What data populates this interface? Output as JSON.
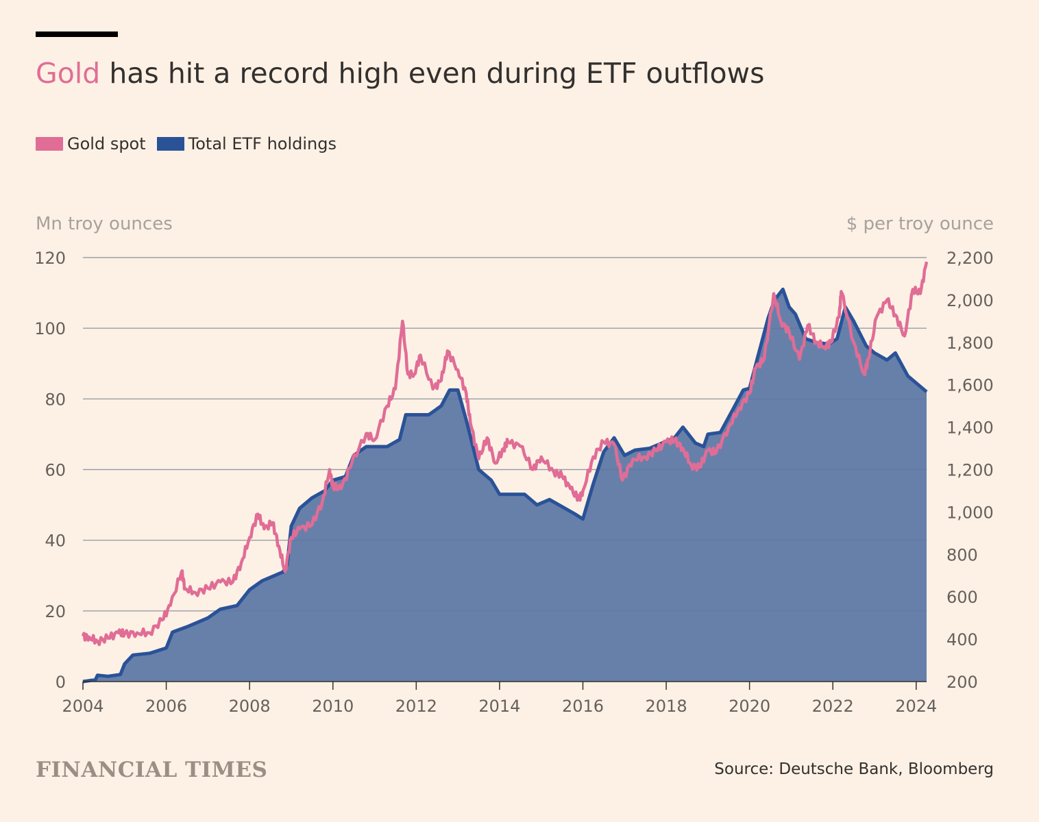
{
  "headline": {
    "highlight": "Gold",
    "rest": " has hit a record high even during ETF outflows"
  },
  "source": "Source: Deutsche Bank, Bloomberg",
  "brand": "FINANCIAL TIMES",
  "colors": {
    "background": "#fdf1e5",
    "gold": "#e06d96",
    "etf_line": "#2a5297",
    "etf_fill": "#6780aa",
    "grid": "#c9c0b6",
    "title_bar": "#000000"
  },
  "chart_data": {
    "type": "area",
    "title": "Gold has hit a record high even during ETF outflows",
    "left_axis": {
      "label": "Mn troy ounces",
      "range": [
        0,
        120
      ],
      "ticks": [
        0,
        20,
        40,
        60,
        80,
        100,
        120
      ],
      "tick_labels": [
        "0",
        "20",
        "40",
        "60",
        "80",
        "100",
        "120"
      ]
    },
    "right_axis": {
      "label": "$ per troy ounce",
      "range": [
        200,
        2200
      ],
      "ticks": [
        200,
        400,
        600,
        800,
        1000,
        1200,
        1400,
        1600,
        1800,
        2000,
        2200
      ],
      "tick_labels": [
        "200",
        "400",
        "600",
        "800",
        "1,000",
        "1,200",
        "1,400",
        "1,600",
        "1,800",
        "2,000",
        "2,200"
      ]
    },
    "x_axis": {
      "range": [
        2004,
        2024.25
      ],
      "ticks": [
        2004,
        2006,
        2008,
        2010,
        2012,
        2014,
        2016,
        2018,
        2020,
        2022,
        2024
      ],
      "tick_labels": [
        "2004",
        "2006",
        "2008",
        "2010",
        "2012",
        "2014",
        "2016",
        "2018",
        "2020",
        "2022",
        "2024"
      ]
    },
    "grid": "horizontal",
    "legend": "top-left",
    "series": [
      {
        "name": "Gold spot",
        "axis": "right",
        "style": "line",
        "points": [
          [
            2004.0,
            415
          ],
          [
            2004.15,
            410
          ],
          [
            2004.35,
            390
          ],
          [
            2004.6,
            405
          ],
          [
            2004.85,
            430
          ],
          [
            2005.0,
            425
          ],
          [
            2005.3,
            430
          ],
          [
            2005.6,
            430
          ],
          [
            2005.9,
            490
          ],
          [
            2006.1,
            560
          ],
          [
            2006.37,
            720
          ],
          [
            2006.45,
            640
          ],
          [
            2006.7,
            620
          ],
          [
            2007.0,
            640
          ],
          [
            2007.3,
            670
          ],
          [
            2007.6,
            670
          ],
          [
            2007.8,
            760
          ],
          [
            2008.0,
            880
          ],
          [
            2008.2,
            990
          ],
          [
            2008.35,
            920
          ],
          [
            2008.55,
            950
          ],
          [
            2008.7,
            840
          ],
          [
            2008.85,
            720
          ],
          [
            2009.0,
            880
          ],
          [
            2009.2,
            920
          ],
          [
            2009.5,
            940
          ],
          [
            2009.75,
            1050
          ],
          [
            2009.92,
            1200
          ],
          [
            2010.0,
            1120
          ],
          [
            2010.2,
            1110
          ],
          [
            2010.45,
            1230
          ],
          [
            2010.8,
            1370
          ],
          [
            2011.0,
            1340
          ],
          [
            2011.3,
            1500
          ],
          [
            2011.5,
            1580
          ],
          [
            2011.67,
            1900
          ],
          [
            2011.8,
            1650
          ],
          [
            2011.95,
            1650
          ],
          [
            2012.1,
            1740
          ],
          [
            2012.4,
            1580
          ],
          [
            2012.6,
            1620
          ],
          [
            2012.75,
            1760
          ],
          [
            2013.0,
            1670
          ],
          [
            2013.2,
            1560
          ],
          [
            2013.3,
            1420
          ],
          [
            2013.5,
            1250
          ],
          [
            2013.7,
            1350
          ],
          [
            2013.9,
            1230
          ],
          [
            2014.1,
            1300
          ],
          [
            2014.2,
            1330
          ],
          [
            2014.5,
            1310
          ],
          [
            2014.8,
            1200
          ],
          [
            2015.0,
            1260
          ],
          [
            2015.3,
            1190
          ],
          [
            2015.5,
            1170
          ],
          [
            2015.7,
            1110
          ],
          [
            2015.9,
            1060
          ],
          [
            2016.0,
            1100
          ],
          [
            2016.25,
            1260
          ],
          [
            2016.5,
            1330
          ],
          [
            2016.75,
            1320
          ],
          [
            2016.95,
            1150
          ],
          [
            2017.2,
            1250
          ],
          [
            2017.5,
            1260
          ],
          [
            2017.75,
            1290
          ],
          [
            2018.0,
            1330
          ],
          [
            2018.2,
            1340
          ],
          [
            2018.4,
            1300
          ],
          [
            2018.6,
            1220
          ],
          [
            2018.8,
            1210
          ],
          [
            2019.0,
            1290
          ],
          [
            2019.2,
            1280
          ],
          [
            2019.5,
            1400
          ],
          [
            2019.75,
            1490
          ],
          [
            2020.0,
            1560
          ],
          [
            2020.15,
            1680
          ],
          [
            2020.35,
            1720
          ],
          [
            2020.58,
            2030
          ],
          [
            2020.75,
            1900
          ],
          [
            2020.95,
            1850
          ],
          [
            2021.2,
            1720
          ],
          [
            2021.4,
            1880
          ],
          [
            2021.6,
            1800
          ],
          [
            2021.8,
            1780
          ],
          [
            2021.95,
            1800
          ],
          [
            2022.15,
            1920
          ],
          [
            2022.2,
            2040
          ],
          [
            2022.5,
            1800
          ],
          [
            2022.75,
            1650
          ],
          [
            2022.85,
            1720
          ],
          [
            2023.05,
            1920
          ],
          [
            2023.3,
            2000
          ],
          [
            2023.5,
            1930
          ],
          [
            2023.72,
            1830
          ],
          [
            2023.92,
            2050
          ],
          [
            2024.1,
            2030
          ],
          [
            2024.25,
            2180
          ]
        ]
      },
      {
        "name": "Total ETF holdings",
        "axis": "left",
        "style": "area",
        "points": [
          [
            2004.0,
            0
          ],
          [
            2004.3,
            0.5
          ],
          [
            2004.35,
            1.8
          ],
          [
            2004.6,
            1.5
          ],
          [
            2004.9,
            2
          ],
          [
            2005.0,
            5
          ],
          [
            2005.2,
            7.5
          ],
          [
            2005.6,
            8
          ],
          [
            2006.0,
            9.5
          ],
          [
            2006.15,
            14
          ],
          [
            2006.5,
            15.5
          ],
          [
            2006.8,
            17
          ],
          [
            2007.0,
            18
          ],
          [
            2007.3,
            20.5
          ],
          [
            2007.7,
            21.5
          ],
          [
            2008.0,
            26
          ],
          [
            2008.3,
            28.5
          ],
          [
            2008.5,
            29.5
          ],
          [
            2008.8,
            31
          ],
          [
            2008.9,
            33
          ],
          [
            2009.0,
            44
          ],
          [
            2009.2,
            49
          ],
          [
            2009.5,
            52
          ],
          [
            2009.8,
            54
          ],
          [
            2010.0,
            57
          ],
          [
            2010.3,
            58
          ],
          [
            2010.5,
            64
          ],
          [
            2010.8,
            66.5
          ],
          [
            2011.0,
            66.5
          ],
          [
            2011.3,
            66.5
          ],
          [
            2011.6,
            68.5
          ],
          [
            2011.75,
            75.5
          ],
          [
            2012.0,
            75.5
          ],
          [
            2012.3,
            75.5
          ],
          [
            2012.6,
            78
          ],
          [
            2012.8,
            82.5
          ],
          [
            2013.0,
            82.5
          ],
          [
            2013.2,
            74
          ],
          [
            2013.5,
            60
          ],
          [
            2013.8,
            57
          ],
          [
            2014.0,
            53
          ],
          [
            2014.3,
            53
          ],
          [
            2014.6,
            53
          ],
          [
            2014.9,
            50
          ],
          [
            2015.2,
            51.5
          ],
          [
            2015.5,
            49.5
          ],
          [
            2015.8,
            47.5
          ],
          [
            2016.0,
            46
          ],
          [
            2016.25,
            56
          ],
          [
            2016.5,
            65
          ],
          [
            2016.75,
            69
          ],
          [
            2017.0,
            64
          ],
          [
            2017.25,
            65.5
          ],
          [
            2017.6,
            66
          ],
          [
            2017.9,
            67.5
          ],
          [
            2018.2,
            69
          ],
          [
            2018.4,
            72
          ],
          [
            2018.7,
            67.5
          ],
          [
            2018.9,
            66.5
          ],
          [
            2019.0,
            70
          ],
          [
            2019.3,
            70.5
          ],
          [
            2019.6,
            77
          ],
          [
            2019.85,
            82.5
          ],
          [
            2020.0,
            83
          ],
          [
            2020.2,
            92
          ],
          [
            2020.45,
            103
          ],
          [
            2020.6,
            108
          ],
          [
            2020.8,
            111
          ],
          [
            2020.95,
            106
          ],
          [
            2021.1,
            104
          ],
          [
            2021.35,
            97
          ],
          [
            2021.6,
            96
          ],
          [
            2021.9,
            95.5
          ],
          [
            2022.1,
            97
          ],
          [
            2022.3,
            106
          ],
          [
            2022.5,
            102
          ],
          [
            2022.8,
            95
          ],
          [
            2023.0,
            93
          ],
          [
            2023.3,
            91
          ],
          [
            2023.5,
            93
          ],
          [
            2023.8,
            86.5
          ],
          [
            2024.0,
            84.5
          ],
          [
            2024.25,
            82
          ]
        ]
      }
    ]
  }
}
